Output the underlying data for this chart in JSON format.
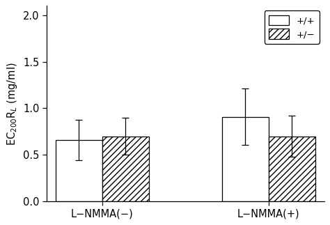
{
  "groups": [
    "L−NMMA(−)",
    "L−NMMA(+)"
  ],
  "bar_values": [
    [
      0.66,
      0.7
    ],
    [
      0.91,
      0.7
    ]
  ],
  "error_values": [
    [
      0.22,
      0.2
    ],
    [
      0.3,
      0.22
    ]
  ],
  "bar_hatches": [
    null,
    "////"
  ],
  "ylabel": "EC$_{200}$R$_L$ (mg/ml)",
  "ylim": [
    0.0,
    2.1
  ],
  "yticks": [
    0.0,
    0.5,
    1.0,
    1.5,
    2.0
  ],
  "group_centers": [
    1.0,
    2.5
  ],
  "bar_width": 0.42,
  "bar_gap": 0.42,
  "figure_facecolor": "white"
}
